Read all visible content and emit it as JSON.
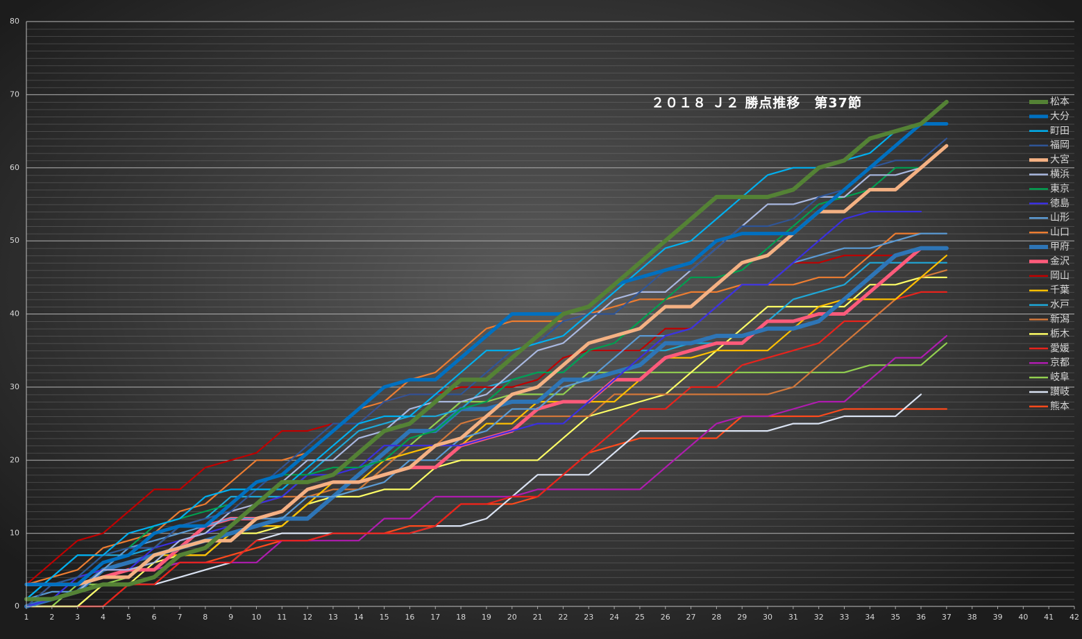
{
  "chart_data": {
    "type": "line",
    "title": "２０１８ Ｊ２ 勝点推移　第37節",
    "x": [
      1,
      2,
      3,
      4,
      5,
      6,
      7,
      8,
      9,
      10,
      11,
      12,
      13,
      14,
      15,
      16,
      17,
      18,
      19,
      20,
      21,
      22,
      23,
      24,
      25,
      26,
      27,
      28,
      29,
      30,
      31,
      32,
      33,
      34,
      35,
      36,
      37
    ],
    "xlim": [
      1,
      42
    ],
    "xticks": [
      1,
      2,
      3,
      4,
      5,
      6,
      7,
      8,
      9,
      10,
      11,
      12,
      13,
      14,
      15,
      16,
      17,
      18,
      19,
      20,
      21,
      22,
      23,
      24,
      25,
      26,
      27,
      28,
      29,
      30,
      31,
      32,
      33,
      34,
      35,
      36,
      37,
      38,
      39,
      40,
      41,
      42
    ],
    "ylim": [
      0,
      80
    ],
    "yticks": [
      0,
      10,
      20,
      30,
      40,
      50,
      60,
      70,
      80
    ],
    "grid": true,
    "legend": "right",
    "series": [
      {
        "name": "松本",
        "color": "#548235",
        "values": [
          1,
          1,
          2,
          3,
          3,
          4,
          7,
          8,
          11,
          14,
          17,
          17,
          18,
          21,
          24,
          25,
          28,
          31,
          31,
          34,
          37,
          40,
          41,
          44,
          47,
          50,
          53,
          56,
          56,
          56,
          57,
          60,
          61,
          64,
          65,
          66,
          69
        ]
      },
      {
        "name": "大分",
        "color": "#0070c0",
        "values": [
          3,
          3,
          3,
          6,
          7,
          10,
          11,
          11,
          14,
          17,
          18,
          21,
          24,
          27,
          30,
          31,
          31,
          34,
          37,
          40,
          40,
          40,
          41,
          44,
          45,
          46,
          47,
          50,
          51,
          51,
          51,
          54,
          57,
          60,
          63,
          66,
          66
        ]
      },
      {
        "name": "町田",
        "color": "#00b0f0",
        "values": [
          1,
          4,
          7,
          7,
          10,
          11,
          12,
          15,
          16,
          16,
          16,
          19,
          22,
          25,
          26,
          26,
          29,
          32,
          35,
          35,
          36,
          37,
          40,
          43,
          46,
          49,
          50,
          53,
          56,
          59,
          60,
          60,
          61,
          62,
          65,
          null,
          null
        ]
      },
      {
        "name": "福岡",
        "color": "#2f5597",
        "values": [
          0,
          3,
          4,
          7,
          8,
          8,
          11,
          12,
          13,
          16,
          19,
          22,
          25,
          25,
          28,
          29,
          29,
          29,
          32,
          35,
          36,
          39,
          40,
          40,
          43,
          46,
          46,
          49,
          52,
          52,
          53,
          56,
          57,
          60,
          61,
          61,
          64
        ]
      },
      {
        "name": "大宮",
        "color": "#f4b183",
        "values": [
          3,
          3,
          3,
          4,
          4,
          7,
          8,
          9,
          9,
          12,
          13,
          16,
          17,
          17,
          18,
          19,
          22,
          23,
          26,
          29,
          30,
          33,
          36,
          37,
          38,
          41,
          41,
          44,
          47,
          48,
          51,
          54,
          54,
          57,
          57,
          60,
          63
        ]
      },
      {
        "name": "横浜",
        "color": "#a9b8e0",
        "values": [
          1,
          1,
          2,
          5,
          5,
          6,
          9,
          10,
          13,
          14,
          17,
          20,
          20,
          23,
          24,
          27,
          28,
          28,
          29,
          32,
          35,
          36,
          39,
          42,
          43,
          43,
          46,
          49,
          52,
          55,
          55,
          56,
          56,
          59,
          59,
          60,
          63
        ]
      },
      {
        "name": "東京",
        "color": "#00a050",
        "values": [
          3,
          3,
          4,
          7,
          8,
          11,
          12,
          13,
          14,
          17,
          18,
          18,
          19,
          19,
          20,
          23,
          24,
          27,
          28,
          31,
          32,
          32,
          35,
          36,
          39,
          42,
          45,
          45,
          46,
          49,
          52,
          55,
          56,
          57,
          60,
          60,
          63
        ]
      },
      {
        "name": "徳島",
        "color": "#3a2fe0",
        "values": [
          0,
          1,
          4,
          5,
          5,
          8,
          9,
          10,
          11,
          14,
          15,
          18,
          18,
          19,
          22,
          22,
          22,
          22,
          23,
          24,
          25,
          25,
          28,
          31,
          34,
          37,
          38,
          41,
          44,
          44,
          47,
          50,
          53,
          54,
          54,
          54,
          null
        ]
      },
      {
        "name": "山形",
        "color": "#5b9bd5",
        "values": [
          1,
          2,
          2,
          5,
          8,
          9,
          10,
          11,
          12,
          12,
          12,
          15,
          15,
          16,
          17,
          20,
          20,
          23,
          24,
          27,
          27,
          30,
          31,
          34,
          37,
          37,
          38,
          41,
          44,
          44,
          47,
          48,
          49,
          49,
          50,
          51,
          51
        ]
      },
      {
        "name": "山口",
        "color": "#ed7d31",
        "values": [
          3,
          4,
          5,
          8,
          9,
          10,
          13,
          14,
          17,
          20,
          20,
          21,
          24,
          27,
          28,
          31,
          32,
          35,
          38,
          39,
          39,
          39,
          40,
          41,
          42,
          42,
          43,
          43,
          44,
          44,
          44,
          45,
          45,
          48,
          51,
          51,
          null
        ]
      },
      {
        "name": "甲府",
        "color": "#2e75b6",
        "values": [
          0,
          1,
          2,
          5,
          6,
          7,
          8,
          9,
          10,
          11,
          12,
          12,
          15,
          18,
          21,
          24,
          24,
          27,
          27,
          28,
          28,
          31,
          31,
          32,
          33,
          36,
          36,
          37,
          37,
          38,
          38,
          39,
          42,
          45,
          48,
          49,
          49
        ]
      },
      {
        "name": "金沢",
        "color": "#ff5b7b",
        "values": [
          3,
          3,
          3,
          4,
          5,
          5,
          8,
          11,
          12,
          12,
          13,
          16,
          17,
          17,
          18,
          19,
          19,
          22,
          23,
          24,
          27,
          28,
          28,
          31,
          31,
          34,
          35,
          36,
          36,
          39,
          39,
          40,
          40,
          43,
          46,
          49,
          49
        ]
      },
      {
        "name": "岡山",
        "color": "#c00000",
        "values": [
          3,
          6,
          9,
          10,
          13,
          16,
          16,
          19,
          20,
          21,
          24,
          24,
          25,
          25,
          28,
          29,
          29,
          30,
          30,
          30,
          31,
          34,
          35,
          35,
          35,
          38,
          38,
          41,
          44,
          44,
          47,
          47,
          48,
          48,
          48,
          49,
          49
        ]
      },
      {
        "name": "千葉",
        "color": "#ffc000",
        "values": [
          3,
          3,
          3,
          4,
          4,
          7,
          7,
          7,
          10,
          11,
          11,
          14,
          17,
          17,
          20,
          21,
          22,
          22,
          25,
          25,
          28,
          28,
          28,
          28,
          31,
          34,
          34,
          35,
          35,
          35,
          38,
          41,
          42,
          42,
          42,
          45,
          48
        ]
      },
      {
        "name": "水戸",
        "color": "#1fa8d8",
        "values": [
          1,
          4,
          7,
          7,
          7,
          8,
          11,
          12,
          15,
          15,
          15,
          18,
          21,
          24,
          25,
          26,
          26,
          27,
          30,
          31,
          32,
          32,
          35,
          35,
          35,
          35,
          36,
          36,
          36,
          39,
          42,
          43,
          44,
          47,
          47,
          47,
          47
        ]
      },
      {
        "name": "新潟",
        "color": "#d2773a",
        "values": [
          0,
          3,
          4,
          5,
          8,
          8,
          11,
          12,
          13,
          14,
          15,
          15,
          16,
          16,
          19,
          22,
          22,
          25,
          26,
          26,
          26,
          26,
          26,
          29,
          29,
          29,
          29,
          29,
          29,
          29,
          30,
          33,
          36,
          39,
          42,
          45,
          46
        ]
      },
      {
        "name": "栃木",
        "color": "#ffff66",
        "values": [
          0,
          0,
          0,
          3,
          3,
          6,
          7,
          7,
          10,
          10,
          11,
          14,
          15,
          15,
          16,
          16,
          19,
          20,
          20,
          20,
          20,
          23,
          26,
          27,
          28,
          29,
          32,
          35,
          38,
          41,
          41,
          41,
          41,
          44,
          44,
          45,
          45
        ]
      },
      {
        "name": "愛媛",
        "color": "#e8231c",
        "values": [
          0,
          0,
          0,
          0,
          3,
          3,
          6,
          6,
          6,
          9,
          9,
          9,
          10,
          10,
          10,
          10,
          11,
          14,
          14,
          15,
          15,
          18,
          21,
          24,
          27,
          27,
          30,
          30,
          33,
          34,
          35,
          36,
          39,
          39,
          42,
          43,
          43
        ]
      },
      {
        "name": "京都",
        "color": "#b01cb0",
        "values": [
          0,
          1,
          2,
          5,
          5,
          5,
          6,
          6,
          6,
          6,
          9,
          9,
          9,
          9,
          12,
          12,
          15,
          15,
          15,
          15,
          16,
          16,
          16,
          16,
          16,
          19,
          22,
          25,
          26,
          26,
          27,
          28,
          28,
          31,
          34,
          34,
          37
        ]
      },
      {
        "name": "岐阜",
        "color": "#92d050",
        "values": [
          0,
          0,
          3,
          3,
          4,
          7,
          7,
          7,
          10,
          11,
          11,
          14,
          15,
          16,
          19,
          22,
          25,
          28,
          28,
          29,
          29,
          29,
          32,
          32,
          32,
          32,
          32,
          32,
          32,
          32,
          32,
          32,
          32,
          33,
          33,
          33,
          36
        ]
      },
      {
        "name": "讃岐",
        "color": "#dae3f3",
        "values": [
          0,
          0,
          0,
          3,
          3,
          3,
          4,
          5,
          6,
          9,
          10,
          10,
          10,
          10,
          10,
          10,
          11,
          11,
          12,
          15,
          18,
          18,
          18,
          21,
          24,
          24,
          24,
          24,
          24,
          24,
          25,
          25,
          26,
          26,
          26,
          29,
          null
        ]
      },
      {
        "name": "熊本",
        "color": "#ff4a1c",
        "values": [
          0,
          0,
          0,
          0,
          3,
          3,
          6,
          6,
          7,
          8,
          9,
          9,
          10,
          10,
          10,
          11,
          11,
          14,
          14,
          14,
          15,
          18,
          21,
          22,
          23,
          23,
          23,
          23,
          26,
          26,
          26,
          26,
          27,
          27,
          27,
          27,
          27
        ]
      }
    ]
  }
}
